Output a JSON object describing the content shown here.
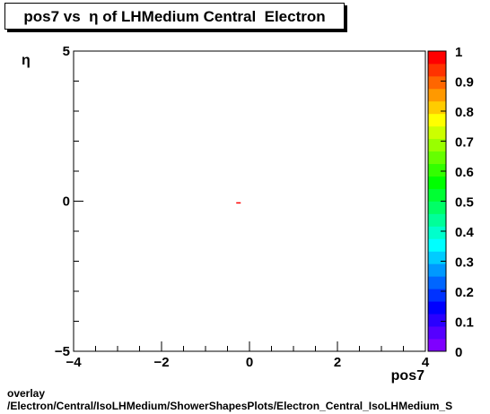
{
  "title": "pos7 vs  η of LHMedium Central  Electron",
  "footer": {
    "line1": "overlay",
    "line2": "/Electron/Central/IsoLHMedium/ShowerShapesPlots/Electron_Central_IsoLHMedium_S"
  },
  "chart_data": {
    "type": "heatmap",
    "title": "pos7 vs  η of LHMedium Central  Electron",
    "xlabel": "pos7",
    "ylabel": "η",
    "xlim": [
      -4,
      4
    ],
    "ylim": [
      -5,
      5
    ],
    "x_ticks": [
      "−4",
      "−2",
      "0",
      "2",
      "4"
    ],
    "y_ticks": [
      "−5",
      "0",
      "5"
    ],
    "zlim": [
      0,
      1
    ],
    "z_ticks": [
      "0",
      "0.1",
      "0.2",
      "0.3",
      "0.4",
      "0.5",
      "0.6",
      "0.7",
      "0.8",
      "0.9",
      "1"
    ],
    "palette": [
      "#7f00ff",
      "#5500ff",
      "#2a00ff",
      "#0000ff",
      "#0032ff",
      "#0066ff",
      "#0099ff",
      "#00ccff",
      "#00ffff",
      "#00ffcc",
      "#00ff99",
      "#00ff66",
      "#00ff33",
      "#00ff00",
      "#33ff00",
      "#66ff00",
      "#99ff00",
      "#ccff00",
      "#ffff00",
      "#ffcc00",
      "#ff9900",
      "#ff6600",
      "#ff3300",
      "#ff0000"
    ],
    "cells": [
      {
        "x": -0.25,
        "y": -0.05,
        "value": 1.0
      }
    ],
    "bin_width_x": 0.08,
    "grid": false
  }
}
